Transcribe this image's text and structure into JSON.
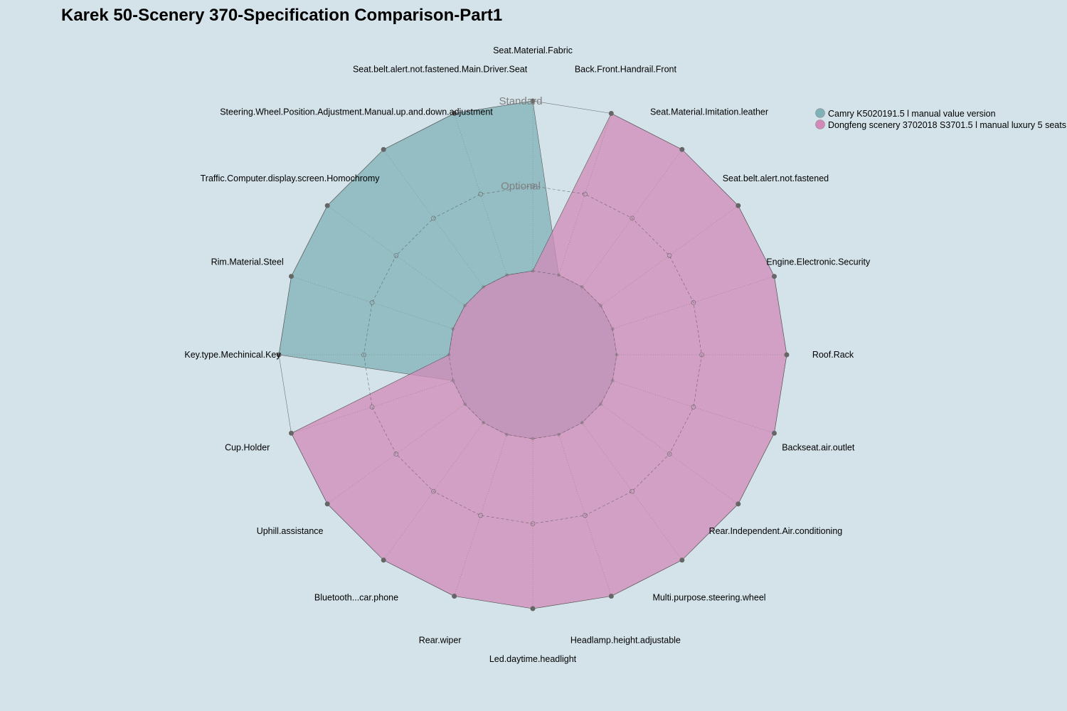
{
  "chart_data": {
    "type": "radar",
    "title": "Karek 50-Scenery 370-Specification Comparison-Part1",
    "levels": [
      "",
      "Optional",
      "Standard"
    ],
    "axes": [
      "Seat.Material.Fabric",
      "Back.Front.Handrail.Front",
      "Seat.Material.Imitation.leather",
      "Seat.belt.alert.not.fastened",
      "Engine.Electronic.Security",
      "Roof.Rack",
      "Backseat.air.outlet",
      "Rear.Independent.Air.conditioning",
      "Multi.purpose.steering.wheel",
      "Headlamp.height.adjustable",
      "Led.daytime.headlight",
      "Rear.wiper",
      "Bluetooth...car.phone",
      "Uphill.assistance",
      "Cup.Holder",
      "Key.type.Mechinical.Key",
      "Rim.Material.Steel",
      "Traffic.Computer.display.screen.Homochromy",
      "Steering.Wheel.Position.Adjustment.Manual.up.and.down.adjustment",
      "Seat.belt.alert.not.fastened.Main.Driver.Seat"
    ],
    "series": [
      {
        "name": "Camry K5020191.5 l manual value version",
        "color": "#7fb2b7",
        "values": [
          2,
          0,
          0,
          0,
          0,
          0,
          0,
          0,
          0,
          0,
          0,
          0,
          0,
          0,
          0,
          2,
          2,
          2,
          2,
          2
        ]
      },
      {
        "name": "Dongfeng scenery 3702018 S3701.5 l manual luxury 5 seats",
        "color": "#d389b8",
        "values": [
          0,
          2,
          2,
          2,
          2,
          2,
          2,
          2,
          2,
          2,
          2,
          2,
          2,
          2,
          2,
          0,
          0,
          0,
          0,
          0
        ]
      }
    ],
    "range": [
      0,
      2
    ],
    "grid": true,
    "legend_position": "top-right"
  }
}
